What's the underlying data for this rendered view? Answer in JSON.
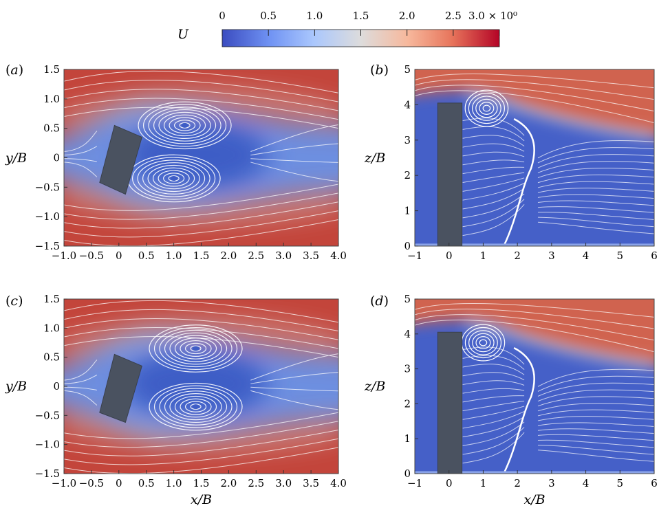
{
  "colorbar": {
    "label": "U",
    "ticks": [
      "0",
      "0.5",
      "1.0",
      "1.5",
      "2.0",
      "2.5",
      "3.0 × 10⁰"
    ],
    "tick_values": [
      0,
      0.5,
      1.0,
      1.5,
      2.0,
      2.5,
      3.0
    ],
    "range": [
      0,
      3.0
    ],
    "colormap": [
      "#3b4cc0",
      "#6f92f3",
      "#aac7fd",
      "#dddcdc",
      "#f7b89c",
      "#e7745b",
      "#b40426"
    ]
  },
  "colors": {
    "body": "#4a5260",
    "streamline": "#ffffff"
  },
  "chart_data": [
    {
      "panel": "(a)",
      "type": "heatmap",
      "xlabel": "",
      "ylabel": "y/B",
      "xlim": [
        -1.0,
        4.0
      ],
      "ylim": [
        -1.5,
        1.5
      ],
      "xticks": [
        "−1.0",
        "−0.5",
        "0",
        "0.5",
        "1.0",
        "1.5",
        "2.0",
        "2.5",
        "3.0",
        "3.5",
        "4.0"
      ],
      "yticks": [
        "−1.5",
        "−1.0",
        "−0.5",
        "0",
        "0.5",
        "1.0",
        "1.5"
      ],
      "body_polygon": [
        [
          -0.35,
          -0.42
        ],
        [
          0.12,
          -0.62
        ],
        [
          0.42,
          0.35
        ],
        [
          -0.08,
          0.55
        ]
      ],
      "vortex_centers": [
        [
          1.2,
          0.55
        ],
        [
          1.0,
          -0.35
        ]
      ]
    },
    {
      "panel": "(b)",
      "type": "heatmap",
      "xlabel": "",
      "ylabel": "z/B",
      "xlim": [
        -1,
        6
      ],
      "ylim": [
        0,
        5
      ],
      "xticks": [
        "−1",
        "0",
        "1",
        "2",
        "3",
        "4",
        "5",
        "6"
      ],
      "yticks": [
        "0",
        "1",
        "2",
        "3",
        "4",
        "5"
      ],
      "body_polygon": [
        [
          -0.33,
          0
        ],
        [
          0.38,
          0
        ],
        [
          0.38,
          4.05
        ],
        [
          -0.33,
          4.05
        ]
      ],
      "vortex_centers": [
        [
          1.1,
          3.9
        ]
      ]
    },
    {
      "panel": "(c)",
      "type": "heatmap",
      "xlabel": "x/B",
      "ylabel": "y/B",
      "xlim": [
        -1.0,
        4.0
      ],
      "ylim": [
        -1.5,
        1.5
      ],
      "xticks": [
        "−1.0",
        "−0.5",
        "0",
        "0.5",
        "1.0",
        "1.5",
        "2.0",
        "2.5",
        "3.0",
        "3.5",
        "4.0"
      ],
      "yticks": [
        "−1.5",
        "−1.0",
        "−0.5",
        "0",
        "0.5",
        "1.0",
        "1.5"
      ],
      "body_polygon": [
        [
          -0.35,
          -0.45
        ],
        [
          0.12,
          -0.62
        ],
        [
          0.42,
          0.35
        ],
        [
          -0.08,
          0.55
        ]
      ],
      "vortex_centers": [
        [
          1.4,
          0.65
        ],
        [
          1.4,
          -0.35
        ]
      ]
    },
    {
      "panel": "(d)",
      "type": "heatmap",
      "xlabel": "x/B",
      "ylabel": "z/B",
      "xlim": [
        -1,
        6
      ],
      "ylim": [
        0,
        5
      ],
      "xticks": [
        "−1",
        "0",
        "1",
        "2",
        "3",
        "4",
        "5",
        "6"
      ],
      "yticks": [
        "0",
        "1",
        "2",
        "3",
        "4",
        "5"
      ],
      "body_polygon": [
        [
          -0.33,
          0
        ],
        [
          0.38,
          0
        ],
        [
          0.38,
          4.05
        ],
        [
          -0.33,
          4.05
        ]
      ],
      "vortex_centers": [
        [
          1.0,
          3.75
        ]
      ]
    }
  ]
}
